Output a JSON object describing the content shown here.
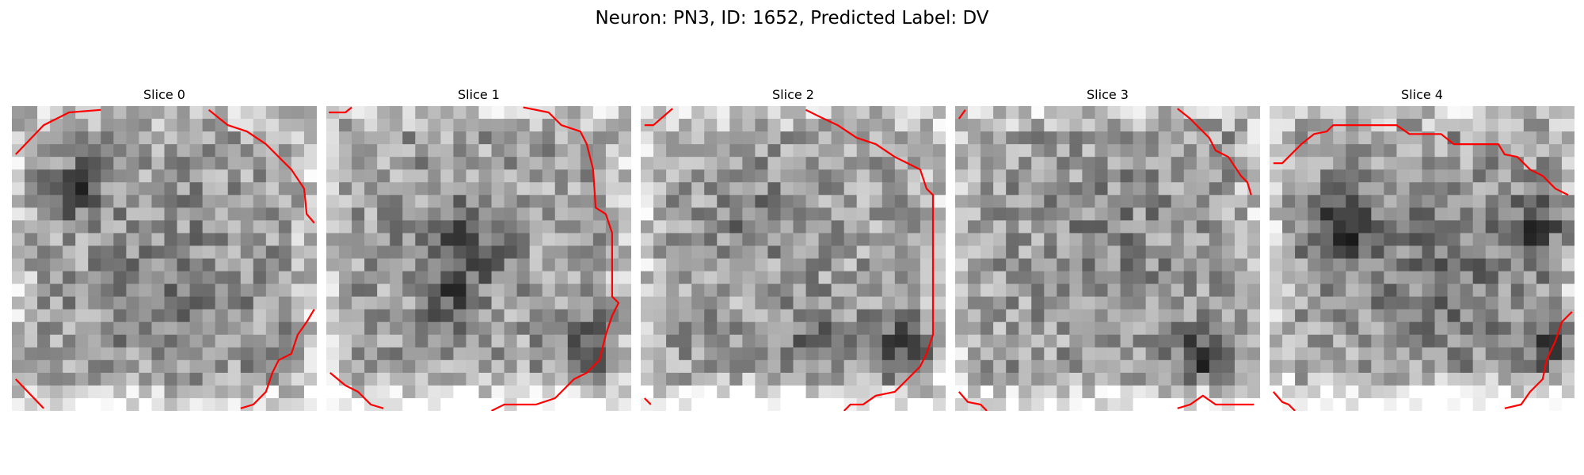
{
  "figure": {
    "title": "Neuron: PN3, ID: 1652, Predicted Label: DV"
  },
  "panels": [
    {
      "title": "Slice 0"
    },
    {
      "title": "Slice 1"
    },
    {
      "title": "Slice 2"
    },
    {
      "title": "Slice 3"
    },
    {
      "title": "Slice 4"
    }
  ],
  "style": {
    "contour_color": "#ff0000",
    "colormap": "grayscale"
  }
}
